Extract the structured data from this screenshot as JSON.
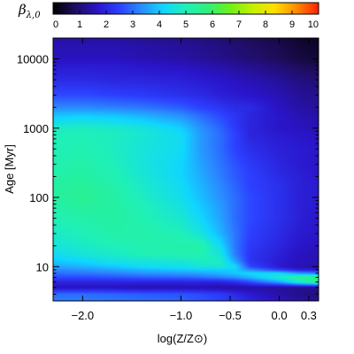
{
  "chart_data": {
    "type": "heatmap",
    "title": "",
    "xlabel": "log(Z/Z⊙)",
    "ylabel": "Age [Myr]",
    "colorbar_label": "β",
    "colorbar_label_sub": "λ,0",
    "colormap": [
      "#000000",
      "#1f0d5e",
      "#2a14c8",
      "#2c40ff",
      "#2a8cff",
      "#10d6ff",
      "#1ff0b8",
      "#2ff07a",
      "#6ff018",
      "#c4f000",
      "#ffe000",
      "#ff8a00",
      "#ff2000"
    ],
    "colorbar_ticks": [
      0,
      1,
      2,
      3,
      4,
      5,
      6,
      7,
      8,
      9,
      10
    ],
    "colorbar_tick_labels": [
      "0",
      "1",
      "2",
      "3",
      "4",
      "5",
      "6",
      "7",
      "8",
      "9",
      "10"
    ],
    "color_range": [
      0,
      10
    ],
    "x_ticks": [
      -2.0,
      -1.0,
      -0.5,
      0.0,
      0.3
    ],
    "x_tick_labels": [
      "−2.0",
      "−1.0",
      "−0.5",
      "0.0",
      "0.3"
    ],
    "xlim": [
      -2.3,
      0.4
    ],
    "y_scale": "log",
    "y_ticks": [
      10,
      100,
      1000,
      10000
    ],
    "y_tick_labels": [
      "10",
      "100",
      "1000",
      "10000"
    ],
    "ylim": [
      3.2,
      20000
    ],
    "logZ": [
      -2.3,
      -2.0,
      -1.7,
      -1.4,
      -1.0,
      -0.8,
      -0.6,
      -0.45,
      -0.3,
      0.0,
      0.2,
      0.4
    ],
    "age_myr": [
      3.2,
      4,
      5,
      6,
      7,
      8,
      9,
      10,
      12,
      15,
      20,
      30,
      50,
      80,
      100,
      150,
      200,
      300,
      500,
      800,
      1000,
      1500,
      2000,
      3000,
      5000,
      8000,
      10000,
      15000,
      20000
    ],
    "beta": [
      [
        3.2,
        3.2,
        3.1,
        3.0,
        2.9,
        2.7,
        2.5,
        2.3,
        2.0,
        1.6,
        1.4,
        1.3
      ],
      [
        3.0,
        3.0,
        2.9,
        2.8,
        2.7,
        2.6,
        2.4,
        2.1,
        1.8,
        1.4,
        1.2,
        1.1
      ],
      [
        1.6,
        1.6,
        1.6,
        1.5,
        1.5,
        1.5,
        1.4,
        1.4,
        1.4,
        1.3,
        1.2,
        1.2
      ],
      [
        2.0,
        2.0,
        2.0,
        2.0,
        2.0,
        2.0,
        2.0,
        2.2,
        2.6,
        3.6,
        4.8,
        5.5
      ],
      [
        2.6,
        2.6,
        2.7,
        2.8,
        2.9,
        3.0,
        3.2,
        3.4,
        3.8,
        4.8,
        5.5,
        5.8
      ],
      [
        3.0,
        3.1,
        3.2,
        3.4,
        3.5,
        3.6,
        3.8,
        4.0,
        4.3,
        4.3,
        3.5,
        3.2
      ],
      [
        3.3,
        3.4,
        3.6,
        3.8,
        4.0,
        4.1,
        4.1,
        4.1,
        3.3,
        2.4,
        1.9,
        1.8
      ],
      [
        3.6,
        3.8,
        4.0,
        4.3,
        4.4,
        4.6,
        4.7,
        4.3,
        2.6,
        1.8,
        1.5,
        1.4
      ],
      [
        4.0,
        4.2,
        4.5,
        4.6,
        4.7,
        4.9,
        4.9,
        3.6,
        2.3,
        1.8,
        1.6,
        1.5
      ],
      [
        4.3,
        4.6,
        4.8,
        5.0,
        5.1,
        5.1,
        4.6,
        3.2,
        2.3,
        1.9,
        1.6,
        1.5
      ],
      [
        4.6,
        4.8,
        5.0,
        5.1,
        5.2,
        5.2,
        4.3,
        3.1,
        2.4,
        2.0,
        1.7,
        1.6
      ],
      [
        4.8,
        5.0,
        5.2,
        5.2,
        5.0,
        4.6,
        3.8,
        3.1,
        2.5,
        2.1,
        1.8,
        1.7
      ],
      [
        5.0,
        5.2,
        5.3,
        5.1,
        4.7,
        4.2,
        3.6,
        3.0,
        2.6,
        2.2,
        1.9,
        1.7
      ],
      [
        5.2,
        5.4,
        5.3,
        5.0,
        4.5,
        4.0,
        3.5,
        3.0,
        2.6,
        2.2,
        1.9,
        1.8
      ],
      [
        5.3,
        5.5,
        5.3,
        4.9,
        4.4,
        3.9,
        3.4,
        3.0,
        2.6,
        2.2,
        1.9,
        1.8
      ],
      [
        5.3,
        5.4,
        5.2,
        4.8,
        4.3,
        3.8,
        3.3,
        2.9,
        2.5,
        2.2,
        1.9,
        1.8
      ],
      [
        5.2,
        5.3,
        5.1,
        4.7,
        4.2,
        3.7,
        3.2,
        2.8,
        2.5,
        2.1,
        1.9,
        1.7
      ],
      [
        5.1,
        5.2,
        5.0,
        4.6,
        4.2,
        3.6,
        3.1,
        2.7,
        2.4,
        2.0,
        1.8,
        1.7
      ],
      [
        5.0,
        5.1,
        4.9,
        4.6,
        4.3,
        3.5,
        3.0,
        2.5,
        2.2,
        1.9,
        1.8,
        1.7
      ],
      [
        5.0,
        5.0,
        4.9,
        4.7,
        4.3,
        3.5,
        3.0,
        2.5,
        2.0,
        1.8,
        1.7,
        1.6
      ],
      [
        4.8,
        4.9,
        4.8,
        4.6,
        4.1,
        3.4,
        2.9,
        2.4,
        2.0,
        1.7,
        1.6,
        1.5
      ],
      [
        4.0,
        4.1,
        4.0,
        3.8,
        3.4,
        3.0,
        2.6,
        2.3,
        2.0,
        1.7,
        1.5,
        1.4
      ],
      [
        3.3,
        3.3,
        3.2,
        3.1,
        2.8,
        2.5,
        2.3,
        2.1,
        2.1,
        1.6,
        1.4,
        1.3
      ],
      [
        2.6,
        2.6,
        2.5,
        2.4,
        2.2,
        2.1,
        1.9,
        1.8,
        1.7,
        1.5,
        1.3,
        1.2
      ],
      [
        2.1,
        2.1,
        2.0,
        2.0,
        1.9,
        1.8,
        1.7,
        1.6,
        1.5,
        1.3,
        1.1,
        1.0
      ],
      [
        1.8,
        1.8,
        1.8,
        1.7,
        1.6,
        1.5,
        1.4,
        1.3,
        1.2,
        1.0,
        0.8,
        0.7
      ],
      [
        1.6,
        1.6,
        1.6,
        1.5,
        1.4,
        1.3,
        1.2,
        1.1,
        1.0,
        0.8,
        0.6,
        0.5
      ],
      [
        1.5,
        1.5,
        1.5,
        1.4,
        1.3,
        1.2,
        1.1,
        1.0,
        0.9,
        0.7,
        0.5,
        0.4
      ],
      [
        1.4,
        1.4,
        1.4,
        1.3,
        1.2,
        1.1,
        1.0,
        0.9,
        0.8,
        0.6,
        0.4,
        0.3
      ]
    ]
  }
}
